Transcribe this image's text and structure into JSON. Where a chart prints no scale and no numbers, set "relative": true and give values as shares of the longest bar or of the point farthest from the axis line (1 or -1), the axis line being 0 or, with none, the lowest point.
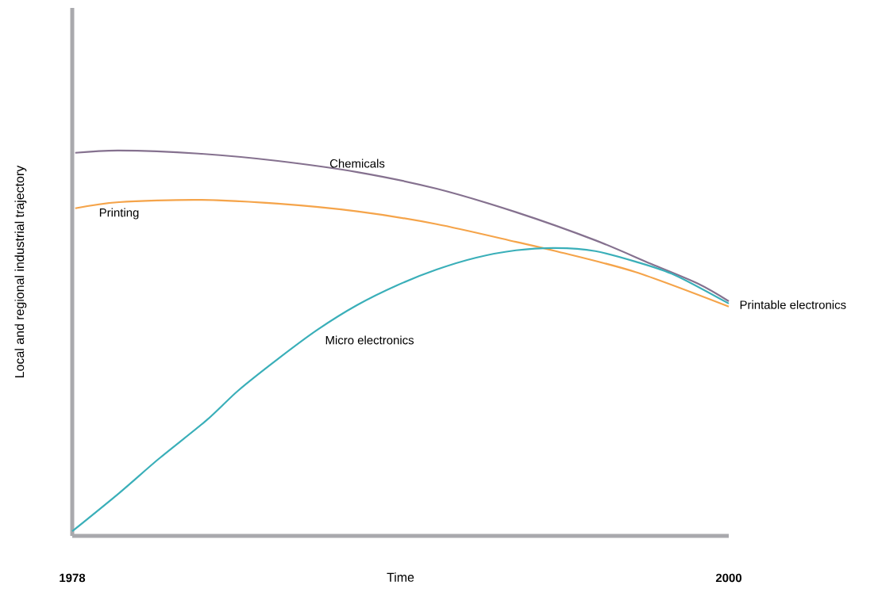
{
  "chart_data": {
    "type": "line",
    "relative": true,
    "xlabel": "Time",
    "ylabel": "Local and regional industrial trajectory",
    "xlim": [
      1978,
      2000
    ],
    "xticks": [
      1978,
      2000
    ],
    "series": [
      {
        "name": "Chemicals",
        "color": "#85718f",
        "x": [
          1978.1,
          1979.57,
          1982.23,
          1984.89,
          1987.55,
          1990.21,
          1992.87,
          1995.53,
          1997.39,
          1998.98,
          2000
        ],
        "values": [
          0.994,
          1.0,
          0.992,
          0.973,
          0.944,
          0.901,
          0.84,
          0.767,
          0.706,
          0.654,
          0.609
        ]
      },
      {
        "name": "Printing",
        "color": "#f5a44a",
        "x": [
          1978.1,
          1979.57,
          1982.23,
          1984.89,
          1987.55,
          1990.21,
          1992.87,
          1994.2,
          1996.86,
          2000
        ],
        "values": [
          0.85,
          0.866,
          0.872,
          0.862,
          0.842,
          0.809,
          0.763,
          0.739,
          0.685,
          0.595
        ]
      },
      {
        "name": "Micro electronics",
        "color": "#3aafb9",
        "x": [
          1978,
          1979.57,
          1980.9,
          1982.5,
          1983.56,
          1984.89,
          1986.22,
          1987.55,
          1988.88,
          1990.21,
          1991.54,
          1992.87,
          1994.2,
          1995.53,
          1996.86,
          1998.19,
          2000
        ],
        "values": [
          0.012,
          0.111,
          0.2,
          0.3,
          0.377,
          0.459,
          0.535,
          0.599,
          0.65,
          0.691,
          0.722,
          0.741,
          0.747,
          0.739,
          0.712,
          0.677,
          0.603
        ]
      }
    ],
    "annotations": [
      {
        "text": "Printable electronics",
        "x": 2000,
        "y": 0.6
      }
    ]
  }
}
